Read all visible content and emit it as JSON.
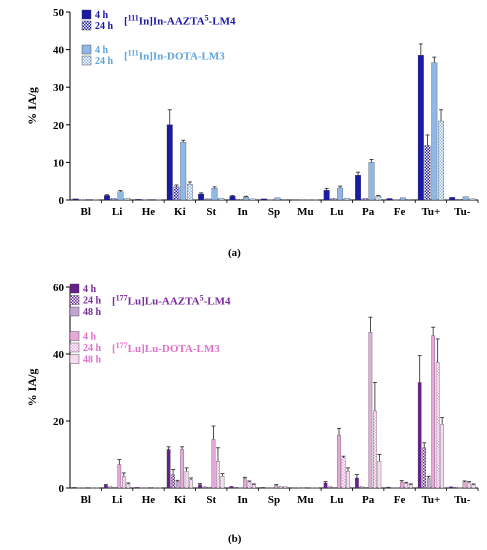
{
  "panels": [
    {
      "caption": "(a)",
      "chart_data": {
        "type": "bar",
        "ylabel": "% IA/g",
        "ylim": [
          0,
          50
        ],
        "yticks": [
          0,
          10,
          20,
          30,
          40,
          50
        ],
        "categories": [
          "Bl",
          "Li",
          "He",
          "Ki",
          "St",
          "In",
          "Sp",
          "Mu",
          "Lu",
          "Pa",
          "Fe",
          "Tu+",
          "Tu-"
        ],
        "groups": [
          {
            "name_prefix": "[",
            "name_isotope": "111",
            "name_element": "In]In-AAZTA",
            "name_sup": "5",
            "name_suffix": "-LM4",
            "color": "#1a1aa6",
            "label_color": "#1a1aa6",
            "series": [
              {
                "name": "4 h",
                "pattern": "solid",
                "values": [
                  0.3,
                  1.2,
                  0.2,
                  20.0,
                  1.6,
                  1.0,
                  0.3,
                  0.1,
                  2.6,
                  6.6,
                  0.4,
                  38.5,
                  0.7
                ],
                "errors": [
                  0.1,
                  0.2,
                  0.1,
                  4.0,
                  0.3,
                  0.2,
                  0.1,
                  0.1,
                  0.5,
                  0.8,
                  0.1,
                  3.0,
                  0.1
                ]
              },
              {
                "name": "24 h",
                "pattern": "checker",
                "values": [
                  0.1,
                  0.4,
                  0.1,
                  3.5,
                  0.3,
                  0.2,
                  0.1,
                  0.1,
                  0.4,
                  0.4,
                  0.1,
                  14.5,
                  0.2
                ],
                "errors": [
                  0.05,
                  0.1,
                  0.05,
                  0.5,
                  0.1,
                  0.1,
                  0.05,
                  0.05,
                  0.1,
                  0.1,
                  0.05,
                  2.8,
                  0.05
                ]
              }
            ]
          },
          {
            "name_prefix": "[",
            "name_isotope": "111",
            "name_element": "In]In-DOTA-LM3",
            "name_sup": "",
            "name_suffix": "",
            "color": "#8fb8e6",
            "label_color": "#5ea3de",
            "series": [
              {
                "name": "4 h",
                "pattern": "solid",
                "values": [
                  0.2,
                  2.2,
                  0.2,
                  15.4,
                  3.1,
                  0.8,
                  0.6,
                  0.1,
                  3.2,
                  10.0,
                  0.6,
                  36.5,
                  0.9
                ],
                "errors": [
                  0.1,
                  0.3,
                  0.1,
                  0.5,
                  0.4,
                  0.2,
                  0.1,
                  0.05,
                  0.5,
                  0.8,
                  0.1,
                  1.5,
                  0.1
                ]
              },
              {
                "name": "24 h",
                "pattern": "checker",
                "values": [
                  0.1,
                  0.5,
                  0.1,
                  4.2,
                  0.5,
                  0.3,
                  0.2,
                  0.1,
                  0.5,
                  1.0,
                  0.2,
                  21.0,
                  0.3
                ],
                "errors": [
                  0.05,
                  0.1,
                  0.05,
                  0.6,
                  0.1,
                  0.1,
                  0.05,
                  0.05,
                  0.1,
                  0.2,
                  0.05,
                  3.0,
                  0.05
                ]
              }
            ]
          }
        ]
      }
    },
    {
      "caption": "(b)",
      "chart_data": {
        "type": "bar",
        "ylabel": "% IA/g",
        "ylim": [
          0,
          60
        ],
        "yticks": [
          0,
          20,
          40,
          60
        ],
        "categories": [
          "Bl",
          "Li",
          "He",
          "Ki",
          "St",
          "In",
          "Sp",
          "Mu",
          "Lu",
          "Pa",
          "Fe",
          "Tu+",
          "Tu-"
        ],
        "groups": [
          {
            "name_prefix": "[",
            "name_isotope": "177",
            "name_element": "Lu]Lu-AAZTA",
            "name_sup": "5",
            "name_suffix": "-LM4",
            "color": "#6a1f8e",
            "label_color": "#7a2a9c",
            "series": [
              {
                "name": "4 h",
                "pattern": "solid",
                "values": [
                  0.2,
                  0.8,
                  0.2,
                  11.5,
                  1.0,
                  0.5,
                  0.2,
                  0.1,
                  1.5,
                  3.0,
                  0.3,
                  31.5,
                  0.4
                ],
                "errors": [
                  0.1,
                  0.2,
                  0.1,
                  0.8,
                  0.3,
                  0.1,
                  0.1,
                  0.05,
                  0.4,
                  1.0,
                  0.1,
                  8.0,
                  0.1
                ]
              },
              {
                "name": "24 h",
                "pattern": "checker",
                "values": [
                  0.1,
                  0.4,
                  0.1,
                  4.0,
                  0.4,
                  0.2,
                  0.1,
                  0.1,
                  0.4,
                  0.4,
                  0.1,
                  12.0,
                  0.2
                ],
                "errors": [
                  0.05,
                  0.1,
                  0.05,
                  1.5,
                  0.1,
                  0.05,
                  0.05,
                  0.05,
                  0.1,
                  0.1,
                  0.05,
                  1.5,
                  0.05
                ]
              },
              {
                "name": "48 h",
                "pattern": "light",
                "values": [
                  0.1,
                  0.2,
                  0.1,
                  2.0,
                  0.2,
                  0.1,
                  0.1,
                  0.05,
                  0.2,
                  0.2,
                  0.1,
                  3.0,
                  0.1
                ],
                "errors": [
                  0.05,
                  0.05,
                  0.05,
                  0.3,
                  0.05,
                  0.05,
                  0.05,
                  0.05,
                  0.05,
                  0.05,
                  0.05,
                  0.5,
                  0.05
                ]
              }
            ]
          },
          {
            "name_prefix": "[",
            "name_isotope": "177",
            "name_element": "Lu]Lu-DOTA-LM3",
            "name_sup": "",
            "name_suffix": "",
            "color": "#e9a8dc",
            "label_color": "#e070cc",
            "series": [
              {
                "name": "4 h",
                "pattern": "solid",
                "values": [
                  0.2,
                  7.0,
                  0.2,
                  11.5,
                  14.5,
                  2.8,
                  0.8,
                  0.2,
                  15.8,
                  46.5,
                  1.8,
                  45.5,
                  1.8
                ],
                "errors": [
                  0.1,
                  1.5,
                  0.1,
                  0.8,
                  4.0,
                  0.4,
                  0.2,
                  0.1,
                  2.0,
                  4.5,
                  0.4,
                  2.5,
                  0.3
                ]
              },
              {
                "name": "24 h",
                "pattern": "checker",
                "values": [
                  0.1,
                  3.5,
                  0.1,
                  5.0,
                  8.0,
                  1.8,
                  0.5,
                  0.1,
                  9.0,
                  23.0,
                  1.4,
                  37.5,
                  1.6
                ],
                "errors": [
                  0.05,
                  1.0,
                  0.05,
                  1.0,
                  4.0,
                  0.3,
                  0.1,
                  0.05,
                  0.5,
                  8.5,
                  0.3,
                  7.0,
                  0.3
                ]
              },
              {
                "name": "48 h",
                "pattern": "light",
                "values": [
                  0.1,
                  1.2,
                  0.1,
                  2.5,
                  3.5,
                  1.0,
                  0.4,
                  0.1,
                  5.0,
                  8.0,
                  1.0,
                  19.0,
                  1.0
                ],
                "errors": [
                  0.05,
                  0.3,
                  0.05,
                  0.5,
                  0.8,
                  0.2,
                  0.1,
                  0.05,
                  1.0,
                  2.0,
                  0.2,
                  2.0,
                  0.2
                ]
              }
            ]
          }
        ]
      }
    }
  ]
}
